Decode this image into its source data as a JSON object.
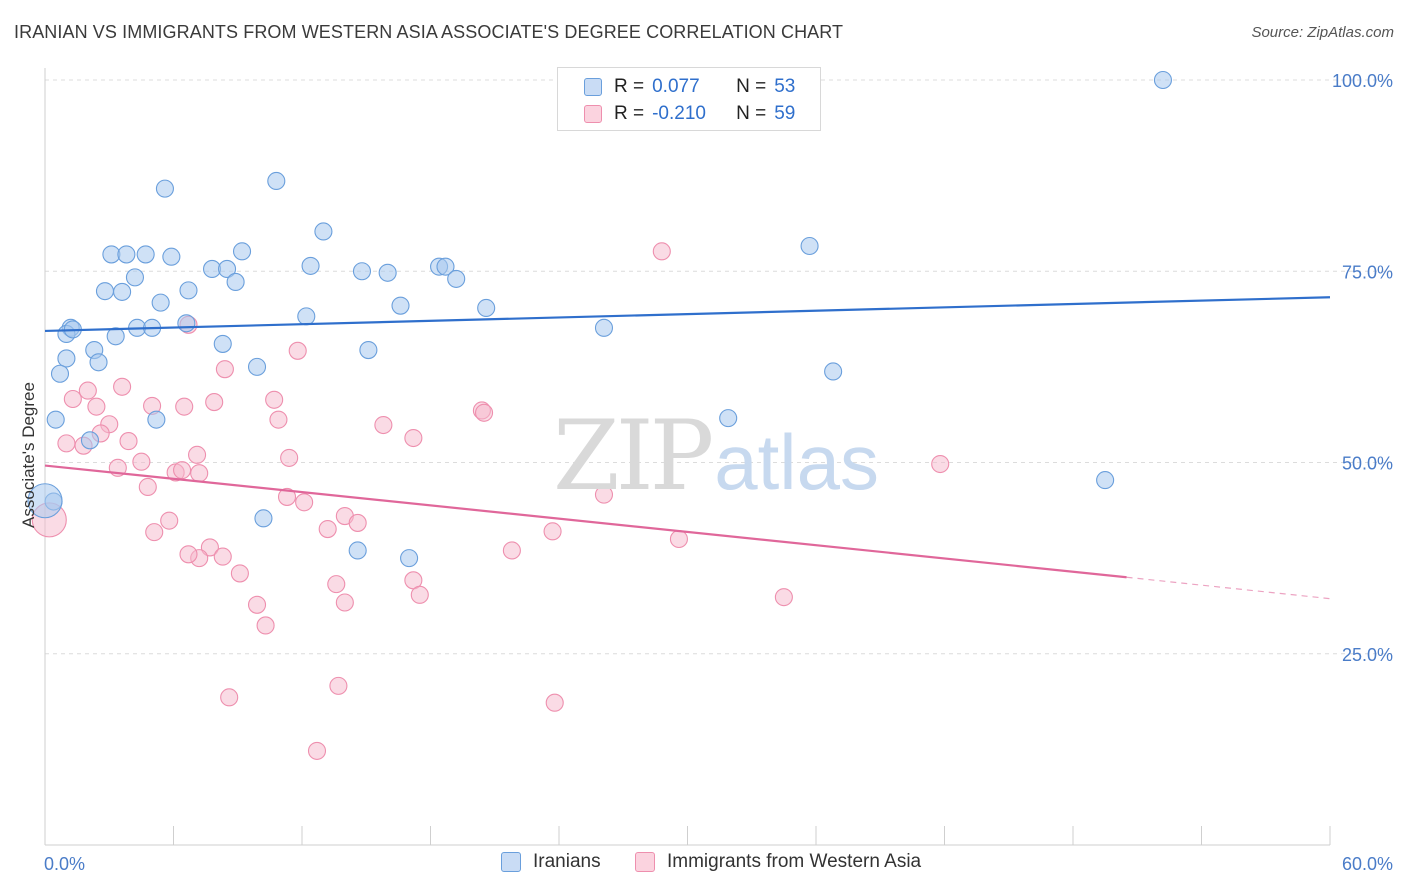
{
  "title": "IRANIAN VS IMMIGRANTS FROM WESTERN ASIA ASSOCIATE'S DEGREE CORRELATION CHART",
  "source": "Source: ZipAtlas.com",
  "watermark": {
    "zip": "ZIP",
    "atlas": "atlas"
  },
  "legend": {
    "rows": [
      {
        "r_label": "R =",
        "r_value": "0.077",
        "n_label": "N =",
        "n_value": "53",
        "color": "#a8c8ee"
      },
      {
        "r_label": "R =",
        "r_value": "-0.210",
        "n_label": "N =",
        "n_value": "59",
        "color": "#f6b8cc"
      }
    ]
  },
  "bottom_legend": {
    "iranians": "Iranians",
    "immigrants": "Immigrants from Western Asia"
  },
  "chart_data": {
    "type": "scatter",
    "title": "IRANIAN VS IMMIGRANTS FROM WESTERN ASIA ASSOCIATE'S DEGREE CORRELATION CHART",
    "xlabel": "",
    "ylabel": "Associate's Degree",
    "xlim": [
      0,
      60
    ],
    "ylim": [
      0,
      102
    ],
    "x_ticks_labels": [
      "0.0%",
      "60.0%"
    ],
    "y_ticks": [
      25,
      50,
      75,
      100
    ],
    "y_tick_labels": [
      "25.0%",
      "50.0%",
      "75.0%",
      "100.0%"
    ],
    "grid": true,
    "colors": {
      "iranians": "#6a9fdc",
      "immigrants": "#ee8fae",
      "iranians_line": "#2f6fcc",
      "immigrants_line": "#e0679a"
    },
    "series": [
      {
        "name": "Iranians",
        "trend": {
          "x0": 0,
          "y0": 67.2,
          "x1": 60,
          "y1": 71.6
        },
        "points": [
          [
            52.2,
            100
          ],
          [
            10.8,
            86.8
          ],
          [
            5.6,
            85.8
          ],
          [
            13.0,
            80.2
          ],
          [
            35.7,
            78.3
          ],
          [
            9.2,
            77.6
          ],
          [
            3.1,
            77.2
          ],
          [
            3.8,
            77.2
          ],
          [
            4.7,
            77.2
          ],
          [
            5.9,
            76.9
          ],
          [
            12.4,
            75.7
          ],
          [
            7.8,
            75.3
          ],
          [
            8.5,
            75.3
          ],
          [
            14.8,
            75.0
          ],
          [
            18.4,
            75.6
          ],
          [
            18.7,
            75.6
          ],
          [
            16.0,
            74.8
          ],
          [
            19.2,
            74.0
          ],
          [
            4.2,
            74.2
          ],
          [
            8.9,
            73.6
          ],
          [
            2.8,
            72.4
          ],
          [
            3.6,
            72.3
          ],
          [
            6.7,
            72.5
          ],
          [
            5.4,
            70.9
          ],
          [
            16.6,
            70.5
          ],
          [
            20.6,
            70.2
          ],
          [
            12.2,
            69.1
          ],
          [
            1.2,
            67.6
          ],
          [
            1.0,
            66.8
          ],
          [
            1.3,
            67.4
          ],
          [
            6.6,
            68.2
          ],
          [
            4.3,
            67.6
          ],
          [
            5.0,
            67.6
          ],
          [
            26.1,
            67.6
          ],
          [
            3.3,
            66.5
          ],
          [
            8.3,
            65.5
          ],
          [
            15.1,
            64.7
          ],
          [
            2.3,
            64.7
          ],
          [
            1.0,
            63.6
          ],
          [
            2.5,
            63.1
          ],
          [
            9.9,
            62.5
          ],
          [
            36.8,
            61.9
          ],
          [
            0.7,
            61.6
          ],
          [
            0.5,
            55.6
          ],
          [
            5.2,
            55.6
          ],
          [
            31.9,
            55.8
          ],
          [
            2.1,
            52.9
          ],
          [
            49.5,
            47.7
          ],
          [
            0.4,
            44.9
          ],
          [
            10.2,
            42.7
          ],
          [
            14.6,
            38.5
          ],
          [
            17.0,
            37.5
          ],
          [
            0.0,
            45.0,
            "big"
          ]
        ]
      },
      {
        "name": "Immigrants from Western Asia",
        "trend": {
          "x0": 0,
          "y0": 49.6,
          "x1": 50.5,
          "y1": 35.0,
          "dash_x1": 60,
          "dash_y1": 32.2
        },
        "points": [
          [
            28.8,
            77.6
          ],
          [
            6.7,
            68.0
          ],
          [
            11.8,
            64.6
          ],
          [
            8.4,
            62.2
          ],
          [
            3.6,
            59.9
          ],
          [
            2.0,
            59.4
          ],
          [
            1.3,
            58.3
          ],
          [
            7.9,
            57.9
          ],
          [
            5.0,
            57.4
          ],
          [
            2.4,
            57.3
          ],
          [
            6.5,
            57.3
          ],
          [
            20.4,
            56.8
          ],
          [
            20.5,
            56.5
          ],
          [
            10.7,
            58.2
          ],
          [
            10.9,
            55.6
          ],
          [
            3.0,
            55.0
          ],
          [
            15.8,
            54.9
          ],
          [
            2.6,
            53.8
          ],
          [
            17.2,
            53.2
          ],
          [
            3.9,
            52.8
          ],
          [
            1.0,
            52.5
          ],
          [
            1.8,
            52.2
          ],
          [
            7.1,
            51.0
          ],
          [
            11.4,
            50.6
          ],
          [
            4.5,
            50.1
          ],
          [
            41.8,
            49.8
          ],
          [
            3.4,
            49.3
          ],
          [
            6.1,
            48.7
          ],
          [
            7.2,
            48.6
          ],
          [
            6.4,
            49.0
          ],
          [
            4.8,
            46.8
          ],
          [
            26.1,
            45.8
          ],
          [
            11.3,
            45.5
          ],
          [
            12.1,
            44.8
          ],
          [
            14.0,
            43.0
          ],
          [
            14.6,
            42.1
          ],
          [
            5.8,
            42.4
          ],
          [
            13.2,
            41.3
          ],
          [
            23.7,
            41.0
          ],
          [
            5.1,
            40.9
          ],
          [
            29.6,
            40.0
          ],
          [
            7.7,
            38.9
          ],
          [
            21.8,
            38.5
          ],
          [
            8.3,
            37.7
          ],
          [
            9.1,
            35.5
          ],
          [
            17.2,
            34.6
          ],
          [
            13.6,
            34.1
          ],
          [
            17.5,
            32.7
          ],
          [
            14.0,
            31.7
          ],
          [
            34.5,
            32.4
          ],
          [
            9.9,
            31.4
          ],
          [
            10.3,
            28.7
          ],
          [
            13.7,
            20.8
          ],
          [
            8.6,
            19.3
          ],
          [
            23.8,
            18.6
          ],
          [
            12.7,
            12.3
          ],
          [
            7.2,
            37.5
          ],
          [
            6.7,
            38.0
          ],
          [
            0.2,
            42.5,
            "big"
          ]
        ]
      }
    ]
  }
}
